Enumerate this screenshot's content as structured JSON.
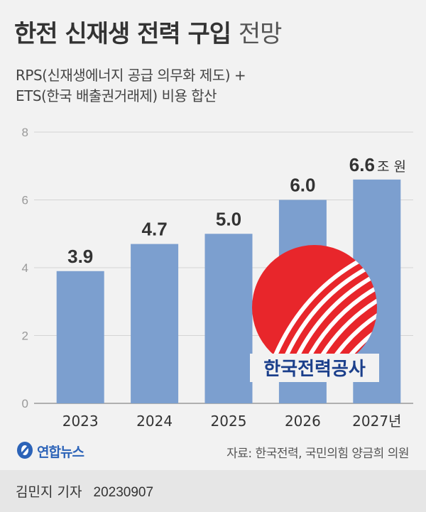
{
  "title": {
    "main": "한전 신재생 전력 구입",
    "suffix": "전망"
  },
  "subtitle": {
    "line1": "RPS(신재생에너지 공급 의무화 제도) +",
    "line2": "ETS(한국 배출권거래제) 비용 합산"
  },
  "chart_data": {
    "type": "bar",
    "categories": [
      "2023",
      "2024",
      "2025",
      "2026",
      "2027년"
    ],
    "values": [
      3.9,
      4.7,
      5.0,
      6.0,
      6.6
    ],
    "value_labels": [
      "3.9",
      "4.7",
      "5.0",
      "6.0",
      "6.6"
    ],
    "unit_label": "조 원",
    "ylim": [
      0,
      8
    ],
    "yticks": [
      "0",
      "2",
      "4",
      "6",
      "8"
    ],
    "grid": true,
    "bar_color": "#7c9fcf"
  },
  "logo": {
    "name": "kepco-logo",
    "text": "한국전력공사",
    "color": "#e8262b"
  },
  "source": {
    "logo_text": "연합뉴스",
    "text": "자료: 한국전력, 국민의힘 양금희 의원"
  },
  "byline": {
    "reporter": "김민지 기자",
    "date": "20230907"
  }
}
